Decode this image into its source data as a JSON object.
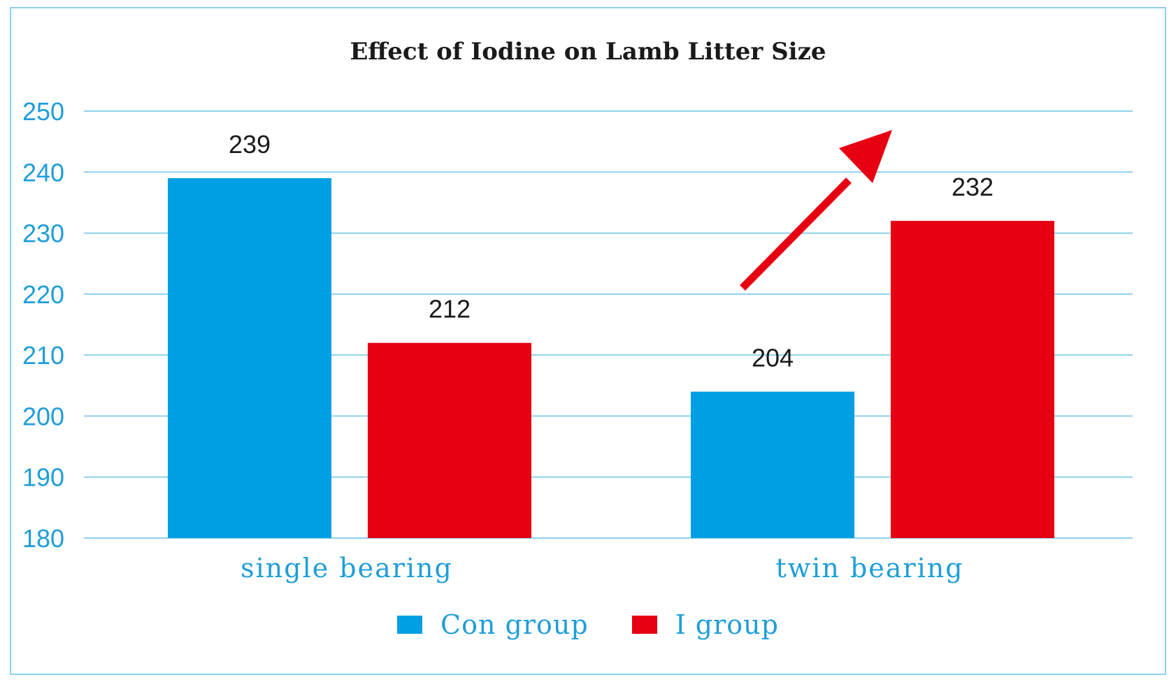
{
  "chart_data": {
    "type": "bar",
    "title": "Effect of Iodine on Lamb Litter Size",
    "categories": [
      "single bearing",
      "twin bearing"
    ],
    "series": [
      {
        "name": "Con group",
        "color": "#009fe3",
        "values": [
          239,
          204
        ]
      },
      {
        "name": "I group",
        "color": "#e60012",
        "values": [
          212,
          232
        ]
      }
    ],
    "ylim": [
      180,
      250
    ],
    "yticks": [
      180,
      190,
      200,
      210,
      220,
      230,
      240,
      250
    ],
    "grid": true,
    "legend_position": "bottom",
    "annotation": "red-up-arrow"
  },
  "colors": {
    "axis_text": "#1f9ed8",
    "grid": "#8fd0ea",
    "arrow": "#e60012"
  }
}
